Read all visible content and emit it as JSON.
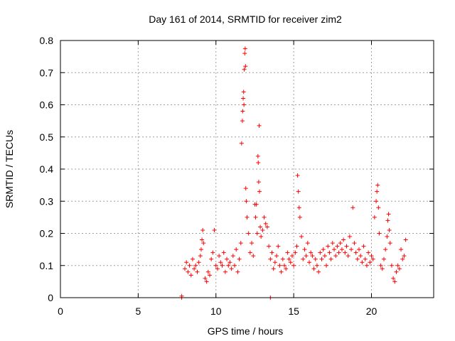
{
  "chart_data": {
    "type": "scatter",
    "title": "Day 161 of 2014, SRMTID for receiver zim2",
    "xlabel": "GPS time / hours",
    "ylabel": "SRMTID / TECUs",
    "xlim": [
      0,
      24
    ],
    "ylim": [
      0,
      0.8
    ],
    "xticks": [
      0,
      5,
      10,
      15,
      20
    ],
    "xtick_labels": [
      "0",
      "5",
      "10",
      "15",
      "20"
    ],
    "yticks": [
      0,
      0.1,
      0.2,
      0.3,
      0.4,
      0.5,
      0.6,
      0.7,
      0.8
    ],
    "ytick_labels": [
      "0",
      "0.1",
      "0.2",
      "0.3",
      "0.4",
      "0.5",
      "0.6",
      "0.7",
      "0.8"
    ],
    "grid": true,
    "marker": "+",
    "color": "#ff0000",
    "series": [
      {
        "name": "zim2",
        "points": [
          [
            7.8,
            0.0
          ],
          [
            7.8,
            0.005
          ],
          [
            13.5,
            0.0
          ],
          [
            8.0,
            0.09
          ],
          [
            8.1,
            0.11
          ],
          [
            8.2,
            0.08
          ],
          [
            8.3,
            0.1
          ],
          [
            8.4,
            0.07
          ],
          [
            8.5,
            0.12
          ],
          [
            8.6,
            0.09
          ],
          [
            8.7,
            0.1
          ],
          [
            8.8,
            0.08
          ],
          [
            8.9,
            0.11
          ],
          [
            9.0,
            0.13
          ],
          [
            9.05,
            0.15
          ],
          [
            9.1,
            0.18
          ],
          [
            9.15,
            0.21
          ],
          [
            9.2,
            0.17
          ],
          [
            9.3,
            0.06
          ],
          [
            9.4,
            0.05
          ],
          [
            9.5,
            0.08
          ],
          [
            9.6,
            0.07
          ],
          [
            9.7,
            0.12
          ],
          [
            9.8,
            0.14
          ],
          [
            9.9,
            0.21
          ],
          [
            10.0,
            0.1
          ],
          [
            10.1,
            0.09
          ],
          [
            10.2,
            0.13
          ],
          [
            10.3,
            0.11
          ],
          [
            10.4,
            0.1
          ],
          [
            10.5,
            0.14
          ],
          [
            10.6,
            0.08
          ],
          [
            10.7,
            0.12
          ],
          [
            10.8,
            0.1
          ],
          [
            10.9,
            0.11
          ],
          [
            11.0,
            0.09
          ],
          [
            11.1,
            0.13
          ],
          [
            11.2,
            0.1
          ],
          [
            11.3,
            0.15
          ],
          [
            11.4,
            0.08
          ],
          [
            11.5,
            0.12
          ],
          [
            11.6,
            0.17
          ],
          [
            11.65,
            0.48
          ],
          [
            11.7,
            0.55
          ],
          [
            11.72,
            0.58
          ],
          [
            11.75,
            0.62
          ],
          [
            11.78,
            0.64
          ],
          [
            11.8,
            0.6
          ],
          [
            11.82,
            0.71
          ],
          [
            11.85,
            0.76
          ],
          [
            11.88,
            0.775
          ],
          [
            11.9,
            0.72
          ],
          [
            11.92,
            0.34
          ],
          [
            11.95,
            0.3
          ],
          [
            12.0,
            0.25
          ],
          [
            12.1,
            0.2
          ],
          [
            12.2,
            0.14
          ],
          [
            12.3,
            0.17
          ],
          [
            12.4,
            0.13
          ],
          [
            12.5,
            0.29
          ],
          [
            12.55,
            0.25
          ],
          [
            12.6,
            0.29
          ],
          [
            12.65,
            0.2
          ],
          [
            12.7,
            0.44
          ],
          [
            12.72,
            0.42
          ],
          [
            12.75,
            0.36
          ],
          [
            12.78,
            0.535
          ],
          [
            12.8,
            0.33
          ],
          [
            12.85,
            0.22
          ],
          [
            12.9,
            0.19
          ],
          [
            13.0,
            0.21
          ],
          [
            13.1,
            0.25
          ],
          [
            13.2,
            0.23
          ],
          [
            13.3,
            0.22
          ],
          [
            13.4,
            0.16
          ],
          [
            13.5,
            0.12
          ],
          [
            13.6,
            0.14
          ],
          [
            13.7,
            0.09
          ],
          [
            13.8,
            0.11
          ],
          [
            13.9,
            0.13
          ],
          [
            14.0,
            0.16
          ],
          [
            14.1,
            0.1
          ],
          [
            14.2,
            0.08
          ],
          [
            14.3,
            0.12
          ],
          [
            14.4,
            0.1
          ],
          [
            14.5,
            0.09
          ],
          [
            14.6,
            0.14
          ],
          [
            14.7,
            0.12
          ],
          [
            14.8,
            0.11
          ],
          [
            14.9,
            0.13
          ],
          [
            15.0,
            0.1
          ],
          [
            15.1,
            0.14
          ],
          [
            15.2,
            0.16
          ],
          [
            15.25,
            0.38
          ],
          [
            15.3,
            0.33
          ],
          [
            15.35,
            0.28
          ],
          [
            15.4,
            0.25
          ],
          [
            15.5,
            0.19
          ],
          [
            15.6,
            0.12
          ],
          [
            15.7,
            0.15
          ],
          [
            15.8,
            0.13
          ],
          [
            15.9,
            0.17
          ],
          [
            16.0,
            0.11
          ],
          [
            16.1,
            0.14
          ],
          [
            16.2,
            0.13
          ],
          [
            16.3,
            0.09
          ],
          [
            16.4,
            0.12
          ],
          [
            16.5,
            0.1
          ],
          [
            16.6,
            0.08
          ],
          [
            16.7,
            0.14
          ],
          [
            16.8,
            0.12
          ],
          [
            16.9,
            0.15
          ],
          [
            17.0,
            0.13
          ],
          [
            17.1,
            0.1
          ],
          [
            17.2,
            0.16
          ],
          [
            17.3,
            0.14
          ],
          [
            17.4,
            0.12
          ],
          [
            17.5,
            0.17
          ],
          [
            17.6,
            0.15
          ],
          [
            17.7,
            0.13
          ],
          [
            17.8,
            0.16
          ],
          [
            17.9,
            0.14
          ],
          [
            18.0,
            0.17
          ],
          [
            18.1,
            0.15
          ],
          [
            18.2,
            0.18
          ],
          [
            18.3,
            0.14
          ],
          [
            18.4,
            0.16
          ],
          [
            18.5,
            0.13
          ],
          [
            18.6,
            0.19
          ],
          [
            18.7,
            0.15
          ],
          [
            18.8,
            0.28
          ],
          [
            18.9,
            0.17
          ],
          [
            19.0,
            0.14
          ],
          [
            19.1,
            0.12
          ],
          [
            19.2,
            0.15
          ],
          [
            19.3,
            0.13
          ],
          [
            19.4,
            0.11
          ],
          [
            19.5,
            0.16
          ],
          [
            19.6,
            0.12
          ],
          [
            19.7,
            0.1
          ],
          [
            19.8,
            0.14
          ],
          [
            19.9,
            0.11
          ],
          [
            20.0,
            0.13
          ],
          [
            20.1,
            0.12
          ],
          [
            20.2,
            0.25
          ],
          [
            20.3,
            0.3
          ],
          [
            20.35,
            0.33
          ],
          [
            20.4,
            0.35
          ],
          [
            20.45,
            0.28
          ],
          [
            20.5,
            0.2
          ],
          [
            20.6,
            0.1
          ],
          [
            20.7,
            0.09
          ],
          [
            20.8,
            0.12
          ],
          [
            20.9,
            0.15
          ],
          [
            21.0,
            0.19
          ],
          [
            21.05,
            0.24
          ],
          [
            21.1,
            0.26
          ],
          [
            21.15,
            0.21
          ],
          [
            21.2,
            0.17
          ],
          [
            21.3,
            0.1
          ],
          [
            21.4,
            0.06
          ],
          [
            21.5,
            0.05
          ],
          [
            21.6,
            0.08
          ],
          [
            21.7,
            0.1
          ],
          [
            21.8,
            0.09
          ],
          [
            21.9,
            0.15
          ],
          [
            22.0,
            0.12
          ],
          [
            22.1,
            0.13
          ],
          [
            22.2,
            0.18
          ]
        ]
      }
    ]
  }
}
